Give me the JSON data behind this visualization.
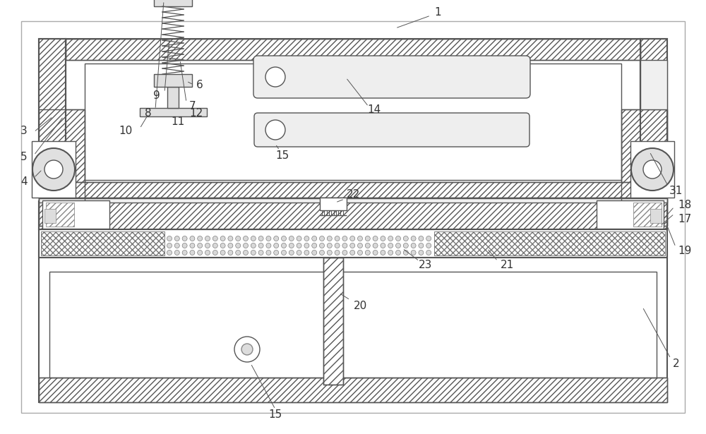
{
  "bg_color": "#ffffff",
  "lc": "#555555",
  "lc_dark": "#333333",
  "figsize": [
    10.0,
    6.15
  ],
  "dpi": 100
}
